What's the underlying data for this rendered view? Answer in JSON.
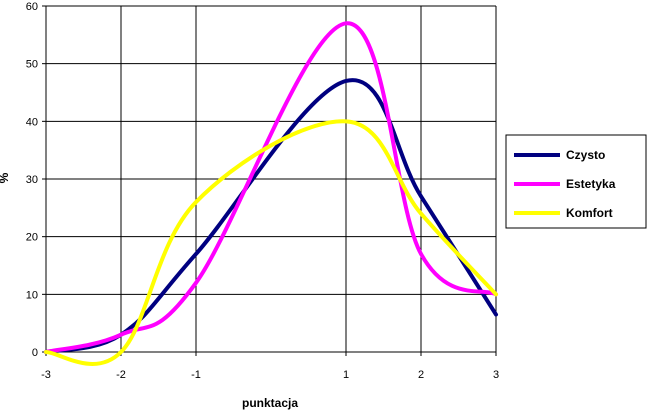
{
  "chart_data": {
    "type": "line",
    "xlabel": "punktacja",
    "ylabel": "%",
    "x_ticks": [
      "-3",
      "-2",
      "-1",
      "1",
      "2",
      "3"
    ],
    "y_ticks": [
      "0",
      "10",
      "20",
      "30",
      "40",
      "50",
      "60"
    ],
    "xlim": [
      -3,
      3
    ],
    "ylim": [
      0,
      60
    ],
    "grid": true,
    "legend_position": "right",
    "x": [
      -3,
      -2,
      -1,
      1,
      2,
      3
    ],
    "series": [
      {
        "name": "Czysto",
        "color": "#000080",
        "values": [
          0,
          3,
          17,
          47,
          27,
          6.5
        ]
      },
      {
        "name": "Estetyka",
        "color": "#ff00ff",
        "values": [
          0,
          3,
          12,
          57,
          17,
          10
        ]
      },
      {
        "name": "Komfort",
        "color": "#ffff00",
        "values": [
          0,
          0,
          26,
          40,
          24,
          10
        ]
      }
    ]
  }
}
